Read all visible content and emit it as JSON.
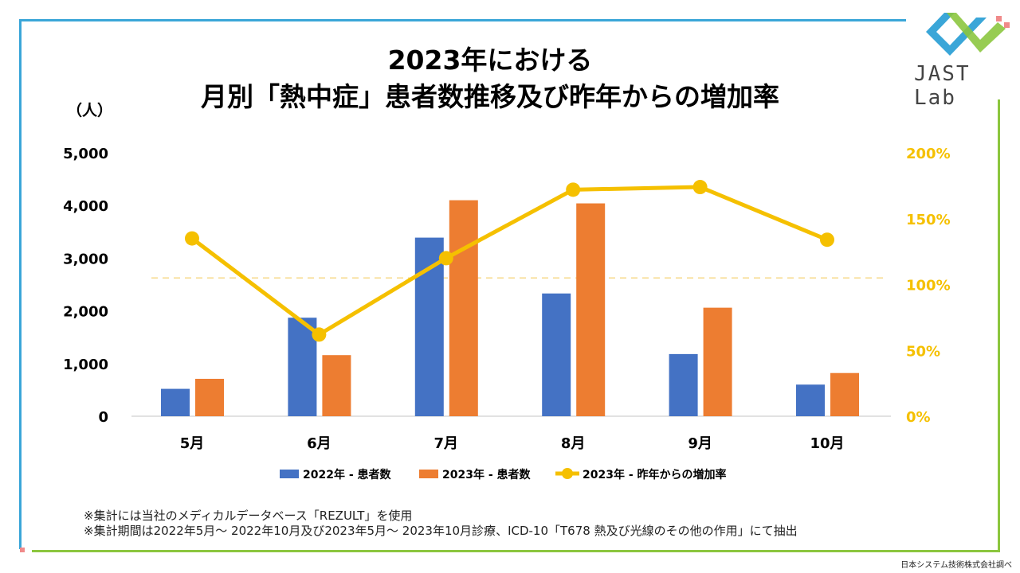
{
  "logo": {
    "text": "JAST Lab",
    "colors": [
      "#3aa6d8",
      "#8cc63f",
      "#f08a8a"
    ]
  },
  "chart_data": {
    "type": "bar+line",
    "title_line1": "2023年における",
    "title_line2": "月別「熱中症」患者数推移及び昨年からの増加率",
    "ylabel": "（人）",
    "categories": [
      "5月",
      "6月",
      "7月",
      "8月",
      "9月",
      "10月"
    ],
    "ylim": [
      0,
      5000
    ],
    "yticks": [
      "0",
      "1,000",
      "2,000",
      "3,000",
      "4,000",
      "5,000"
    ],
    "y2lim": [
      0,
      200
    ],
    "y2ticks": [
      "0%",
      "50%",
      "100%",
      "150%",
      "200%"
    ],
    "reference_line_y2": 105,
    "grid": false,
    "legend_position": "bottom",
    "series": [
      {
        "name": "2022年 - 患者数",
        "type": "bar",
        "axis": "left",
        "color": "#4472c4",
        "values": [
          520,
          1870,
          3390,
          2330,
          1180,
          600
        ]
      },
      {
        "name": "2023年 - 患者数",
        "type": "bar",
        "axis": "left",
        "color": "#ed7d31",
        "values": [
          710,
          1160,
          4100,
          4040,
          2060,
          820
        ]
      },
      {
        "name": "2023年 - 昨年からの増加率",
        "type": "line",
        "axis": "right",
        "color": "#f5c000",
        "values": [
          135,
          62,
          120,
          172,
          174,
          134
        ]
      }
    ]
  },
  "notes": [
    "※集計には当社のメディカルデータベース「REZULT」を使用",
    "※集計期間は2022年5月～ 2022年10月及び2023年5月～ 2023年10月診療、ICD-10「T678 熱及び光線のその他の作用」にて抽出"
  ],
  "source": "日本システム技術株式会社調べ"
}
